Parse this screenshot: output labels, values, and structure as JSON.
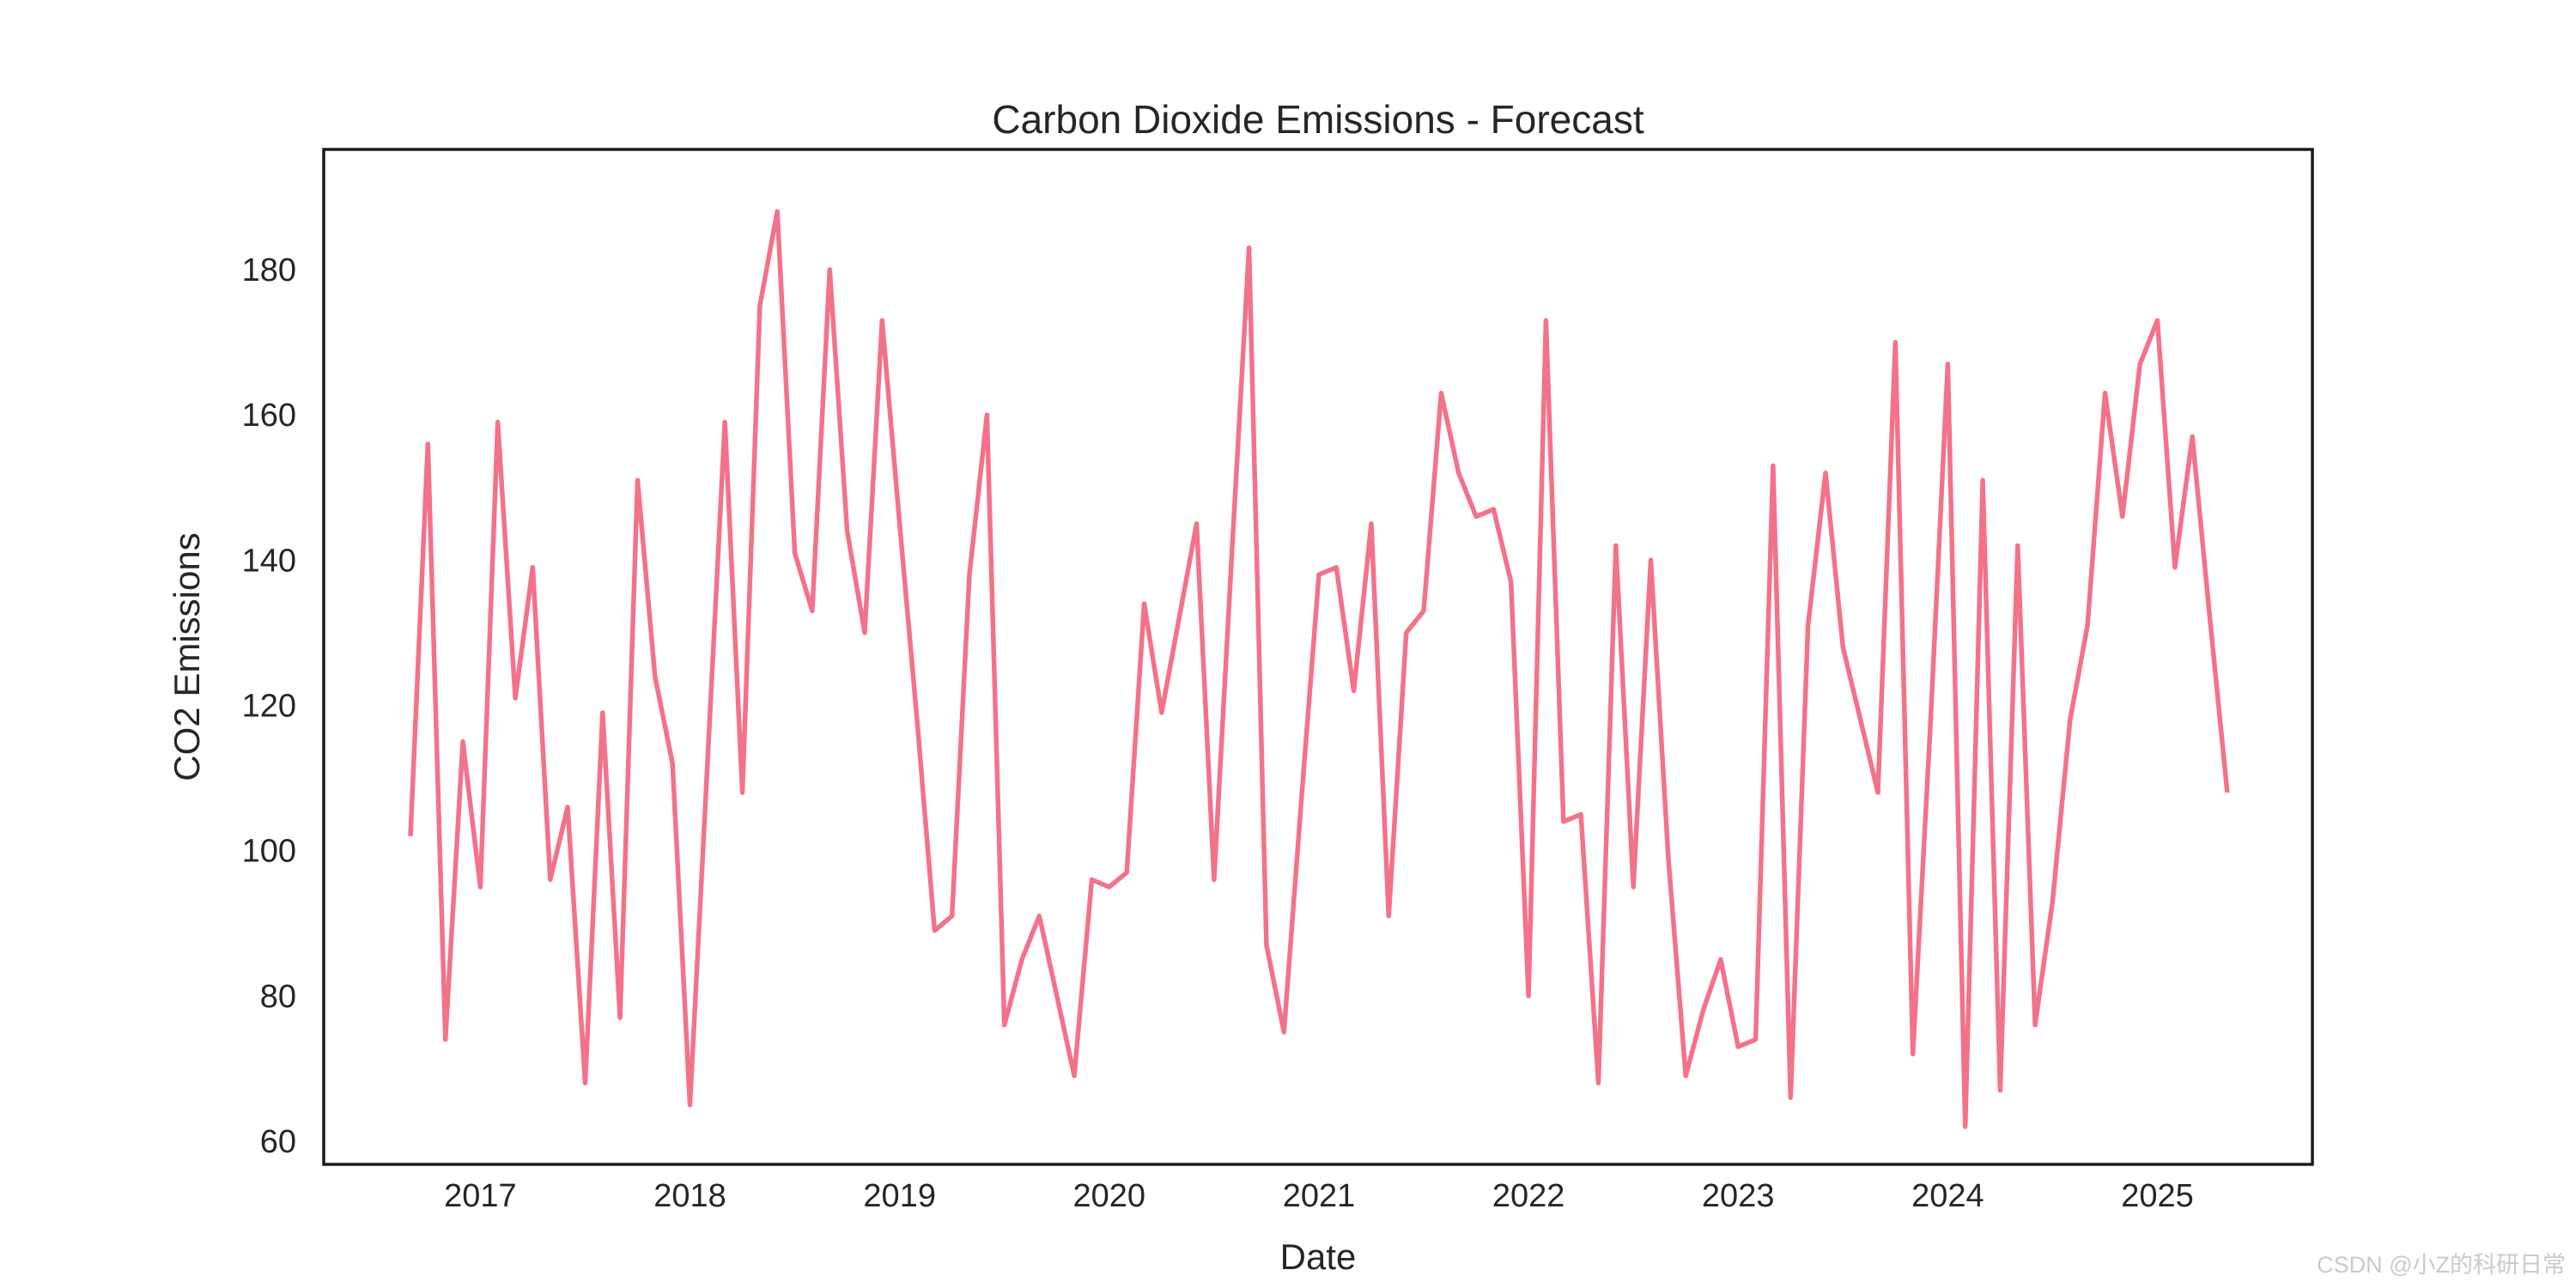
{
  "figure": {
    "background": "#ffffff",
    "spine_color": "#1a1a1a",
    "text_color": "#262626"
  },
  "watermark": {
    "text": "CSDN @小Z的科研日常",
    "color": "#c9c9d0"
  },
  "chart_data": {
    "type": "line",
    "title": "Carbon Dioxide Emissions - Forecast",
    "xlabel": "Date",
    "ylabel": "CO2 Emissions",
    "legend_position": "none",
    "grid": false,
    "line_color": "#f4718a",
    "ylim": [
      56.8,
      196.6
    ],
    "yticks": [
      60,
      80,
      100,
      120,
      140,
      160,
      180
    ],
    "xticks": [
      "2017",
      "2018",
      "2019",
      "2020",
      "2021",
      "2022",
      "2023",
      "2024",
      "2025"
    ],
    "x": [
      "2016-09",
      "2016-10",
      "2016-11",
      "2016-12",
      "2017-01",
      "2017-02",
      "2017-03",
      "2017-04",
      "2017-05",
      "2017-06",
      "2017-07",
      "2017-08",
      "2017-09",
      "2017-10",
      "2017-11",
      "2017-12",
      "2018-01",
      "2018-02",
      "2018-03",
      "2018-04",
      "2018-05",
      "2018-06",
      "2018-07",
      "2018-08",
      "2018-09",
      "2018-10",
      "2018-11",
      "2018-12",
      "2019-01",
      "2019-02",
      "2019-03",
      "2019-04",
      "2019-05",
      "2019-06",
      "2019-07",
      "2019-08",
      "2019-09",
      "2019-10",
      "2019-11",
      "2019-12",
      "2020-01",
      "2020-02",
      "2020-03",
      "2020-04",
      "2020-05",
      "2020-06",
      "2020-07",
      "2020-08",
      "2020-09",
      "2020-10",
      "2020-11",
      "2020-12",
      "2021-01",
      "2021-02",
      "2021-03",
      "2021-04",
      "2021-05",
      "2021-06",
      "2021-07",
      "2021-08",
      "2021-09",
      "2021-10",
      "2021-11",
      "2021-12",
      "2022-01",
      "2022-02",
      "2022-03",
      "2022-04",
      "2022-05",
      "2022-06",
      "2022-07",
      "2022-08",
      "2022-09",
      "2022-10",
      "2022-11",
      "2022-12",
      "2023-01",
      "2023-02",
      "2023-03",
      "2023-04",
      "2023-05",
      "2023-06",
      "2023-07",
      "2023-08",
      "2023-09",
      "2023-10",
      "2023-11",
      "2023-12",
      "2024-01",
      "2024-02",
      "2024-03",
      "2024-04",
      "2024-05",
      "2024-06",
      "2024-07",
      "2024-08",
      "2024-09",
      "2024-10",
      "2024-11",
      "2024-12",
      "2025-01",
      "2025-02",
      "2025-03",
      "2025-04",
      "2025-05"
    ],
    "values": [
      102,
      156,
      74,
      115,
      95,
      159,
      121,
      139,
      96,
      106,
      68,
      119,
      77,
      151,
      124,
      112,
      65,
      112,
      159,
      108,
      175,
      188,
      141,
      133,
      180,
      144,
      130,
      173,
      145,
      118,
      89,
      91,
      138,
      160,
      76,
      85,
      91,
      80,
      69,
      96,
      95,
      97,
      134,
      119,
      132,
      145,
      96,
      140,
      183,
      87,
      75,
      107,
      138,
      139,
      122,
      145,
      91,
      130,
      133,
      163,
      152,
      146,
      147,
      137,
      80,
      173,
      104,
      105,
      68,
      142,
      95,
      140,
      99,
      69,
      78,
      85,
      73,
      74,
      153,
      66,
      131,
      152,
      128,
      118,
      108,
      170,
      72,
      117,
      167,
      62,
      151,
      67,
      142,
      76,
      93,
      118,
      131,
      163,
      146,
      167,
      173,
      139,
      157,
      132,
      108
    ]
  }
}
